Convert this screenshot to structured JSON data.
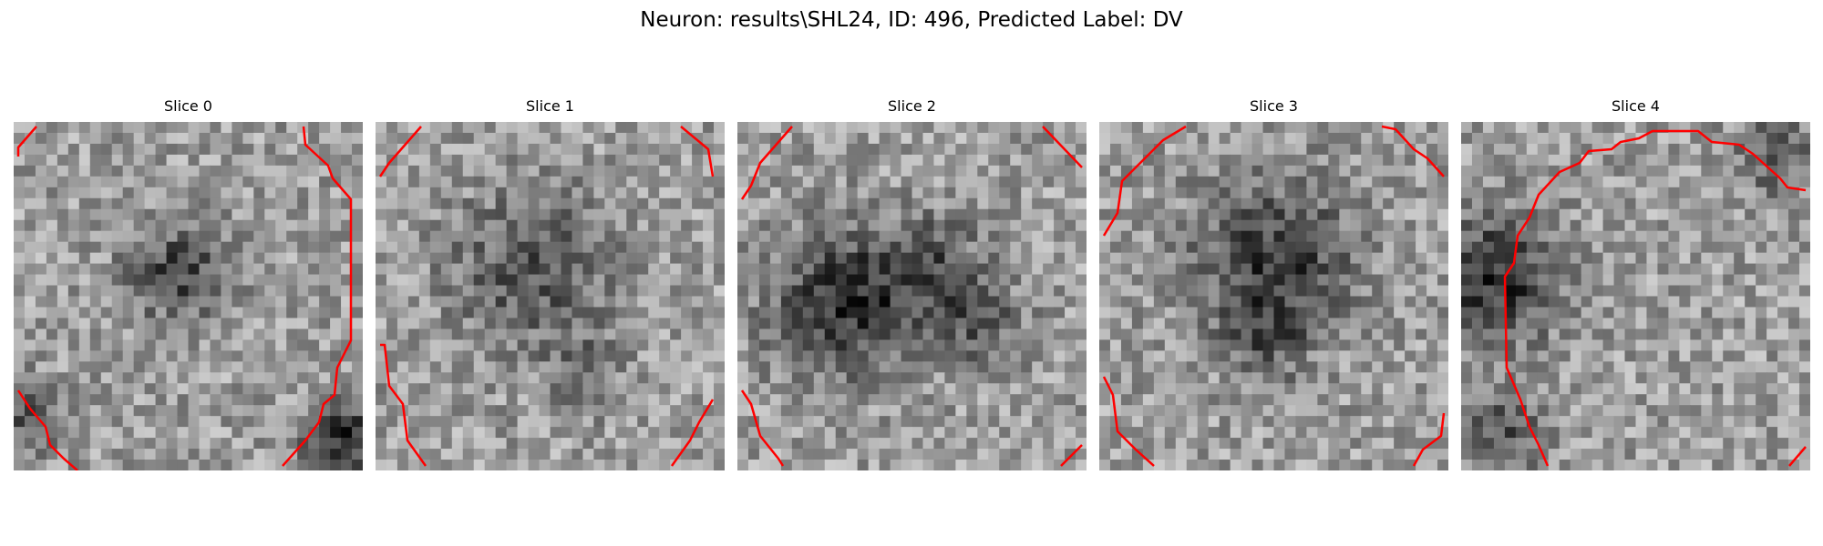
{
  "figure": {
    "title": "Neuron: results\\SHL24, ID: 496, Predicted Label: DV",
    "panels": [
      {
        "title": "Slice 0",
        "overlay_color": "#ff0000"
      },
      {
        "title": "Slice 1",
        "overlay_color": "#ff0000"
      },
      {
        "title": "Slice 2",
        "overlay_color": "#ff0000"
      },
      {
        "title": "Slice 3",
        "overlay_color": "#ff0000"
      },
      {
        "title": "Slice 4",
        "overlay_color": "#ff0000"
      }
    ]
  }
}
